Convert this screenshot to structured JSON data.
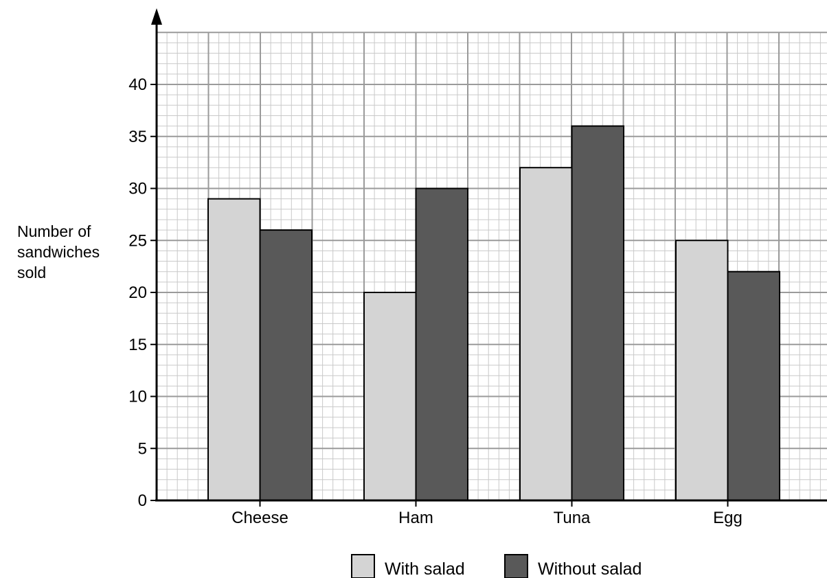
{
  "chart_data": {
    "type": "bar",
    "title": "",
    "xlabel": "",
    "ylabel": [
      "Number of",
      "sandwiches",
      "sold"
    ],
    "categories": [
      "Cheese",
      "Ham",
      "Tuna",
      "Egg"
    ],
    "series": [
      {
        "name": "With salad",
        "values": [
          29,
          20,
          32,
          25
        ],
        "color": "#d4d4d4"
      },
      {
        "name": "Without salad",
        "values": [
          26,
          30,
          36,
          22
        ],
        "color": "#595959"
      }
    ],
    "ylim": [
      0,
      45
    ],
    "yticks": [
      0,
      5,
      10,
      15,
      20,
      25,
      30,
      35,
      40
    ],
    "grid": true,
    "minor_step": 1,
    "legend_position": "bottom-center"
  }
}
